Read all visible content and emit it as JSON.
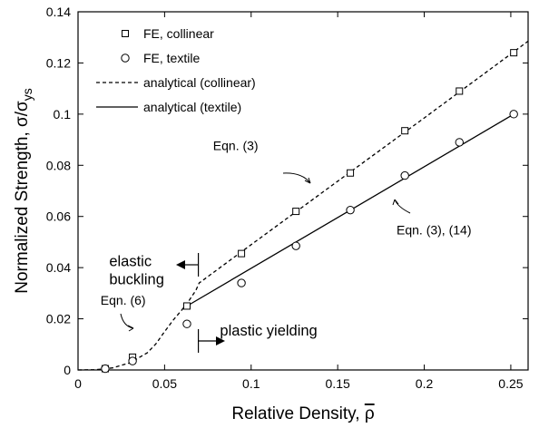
{
  "chart_data": {
    "type": "line",
    "xlabel": "Relative Density, ρ",
    "ylabel": "Normalized Strength, σ/σys",
    "xlim": [
      0,
      0.26
    ],
    "ylim": [
      0,
      0.14
    ],
    "x_ticks": [
      0,
      0.05,
      0.1,
      0.15,
      0.2,
      0.25
    ],
    "x_tick_labels": [
      "0",
      "0.05",
      "0.1",
      "0.15",
      "0.2",
      "0.25"
    ],
    "y_ticks": [
      0,
      0.02,
      0.04,
      0.06,
      0.08,
      0.1,
      0.12,
      0.14
    ],
    "y_tick_labels": [
      "0",
      "0.02",
      "0.04",
      "0.06",
      "0.08",
      "0.1",
      "0.12",
      "0.14"
    ],
    "grid": false,
    "legend_position": "top-left",
    "series": [
      {
        "name": "FE, collinear",
        "kind": "scatter",
        "marker": "square",
        "x": [
          0.0157,
          0.0315,
          0.0629,
          0.0944,
          0.1259,
          0.1573,
          0.1888,
          0.2203,
          0.2517
        ],
        "y": [
          0.0005,
          0.005,
          0.025,
          0.0455,
          0.062,
          0.077,
          0.0935,
          0.109,
          0.124
        ]
      },
      {
        "name": "FE, textile",
        "kind": "scatter",
        "marker": "circle",
        "x": [
          0.0157,
          0.0315,
          0.0629,
          0.0944,
          0.1259,
          0.1573,
          0.1888,
          0.2203,
          0.2517
        ],
        "y": [
          0.0005,
          0.0035,
          0.018,
          0.034,
          0.0485,
          0.0625,
          0.076,
          0.089,
          0.1
        ]
      },
      {
        "name": "analytical (collinear)",
        "kind": "line",
        "dash": "dashed",
        "x": [
          0.0,
          0.01,
          0.02,
          0.03,
          0.04,
          0.045,
          0.05,
          0.055,
          0.06,
          0.064,
          0.068,
          0.07,
          0.08,
          0.1,
          0.15,
          0.2,
          0.25,
          0.26
        ],
        "y": [
          0.0,
          0.0001,
          0.0008,
          0.0028,
          0.0067,
          0.0102,
          0.015,
          0.0195,
          0.0235,
          0.027,
          0.031,
          0.034,
          0.039,
          0.049,
          0.0738,
          0.0985,
          0.1235,
          0.1285
        ]
      },
      {
        "name": "analytical (textile)",
        "kind": "line",
        "dash": "solid",
        "x": [
          0.0629,
          0.2517
        ],
        "y": [
          0.025,
          0.1
        ]
      }
    ],
    "annotations": [
      {
        "text": "Eqn. (3)",
        "x": 0.078,
        "y": 0.086
      },
      {
        "text": "Eqn. (3), (14)",
        "x": 0.184,
        "y": 0.053
      },
      {
        "text": "elastic",
        "x": 0.018,
        "y": 0.0405
      },
      {
        "text": "buckling",
        "x": 0.018,
        "y": 0.0335
      },
      {
        "text": "Eqn. (6)",
        "x": 0.013,
        "y": 0.0255
      },
      {
        "text": "plastic yielding",
        "x": 0.082,
        "y": 0.0135
      }
    ]
  }
}
